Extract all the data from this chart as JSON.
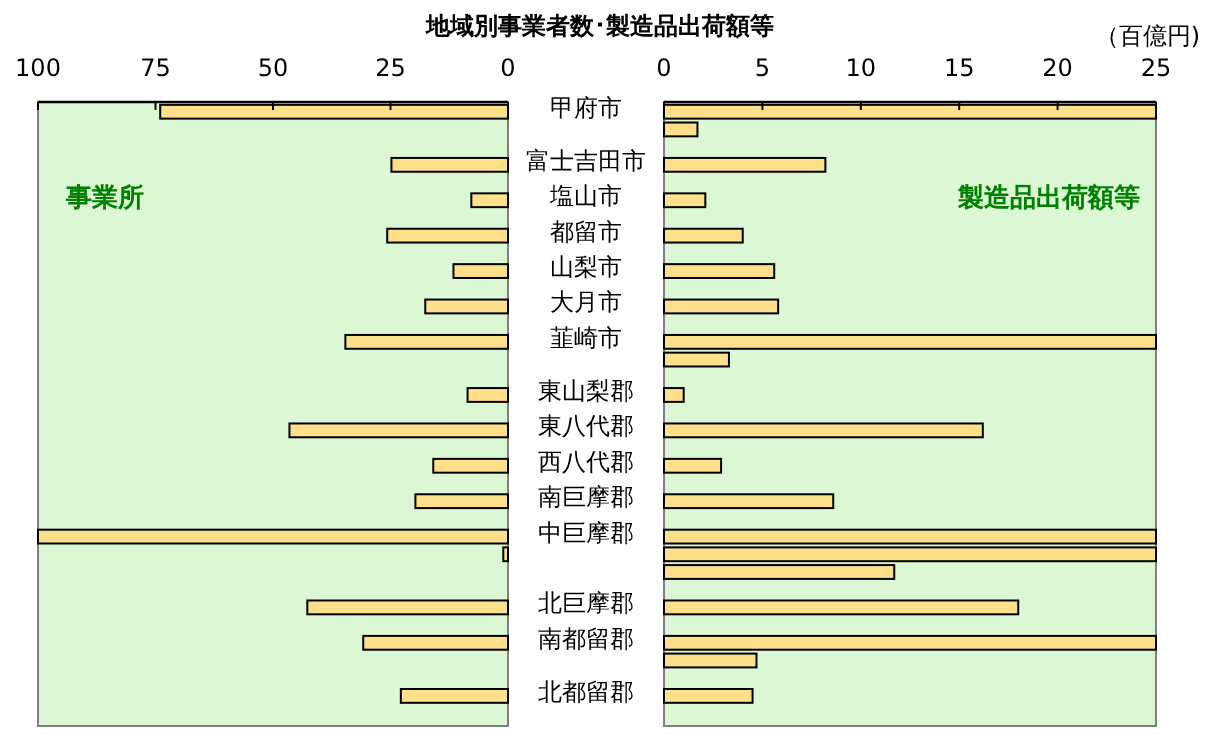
{
  "chart_data": [
    {
      "type": "bar",
      "orientation": "horizontal",
      "title": "地域別事業者数･製造品出荷額等",
      "categories": [
        "甲府市",
        null,
        null,
        "富士吉田市",
        null,
        "塩山市",
        null,
        "都留市",
        null,
        "山梨市",
        null,
        "大月市",
        null,
        "韮崎市",
        null,
        null,
        "東山梨郡",
        null,
        "東八代郡",
        null,
        "西八代郡",
        null,
        "南巨摩郡",
        null,
        "中巨摩郡",
        null,
        null,
        null,
        "北巨摩郡",
        null,
        "南都留郡",
        null,
        null,
        "北都留郡"
      ],
      "values": [
        74.0,
        null,
        null,
        24.8,
        null,
        7.8,
        null,
        25.7,
        null,
        11.6,
        null,
        17.6,
        null,
        34.6,
        null,
        null,
        8.6,
        null,
        46.5,
        null,
        15.9,
        null,
        19.7,
        null,
        100,
        1,
        null,
        null,
        42.7,
        null,
        30.8,
        null,
        null,
        22.8
      ],
      "color": "#ffe08a",
      "xlim": [
        100,
        0
      ],
      "xticks": [
        100,
        75,
        50,
        25,
        0
      ],
      "grid": false,
      "annotations": [
        "事業所"
      ]
    },
    {
      "type": "bar",
      "orientation": "horizontal",
      "xlabel": "（百億円)",
      "categories": [
        null,
        null,
        null,
        null,
        null,
        null,
        null,
        null,
        null,
        null,
        null,
        null,
        null,
        null,
        null,
        null,
        null,
        null,
        null,
        null,
        null,
        null,
        null,
        null,
        null,
        null,
        null,
        null,
        null,
        null,
        null,
        null,
        null,
        null
      ],
      "values": [
        25,
        1.7,
        null,
        8.2,
        null,
        2.1,
        null,
        4.0,
        null,
        5.6,
        null,
        5.8,
        null,
        25,
        3.3,
        null,
        1.0,
        null,
        16.2,
        null,
        2.9,
        null,
        8.6,
        null,
        25,
        25,
        11.7,
        null,
        18.0,
        null,
        25,
        4.7,
        null,
        4.5
      ],
      "color": "#ffe08a",
      "xlim": [
        0,
        25
      ],
      "xticks": [
        0,
        5,
        10,
        15,
        20,
        25
      ],
      "grid": false,
      "annotations": [
        "製造品出荷額等"
      ]
    }
  ]
}
